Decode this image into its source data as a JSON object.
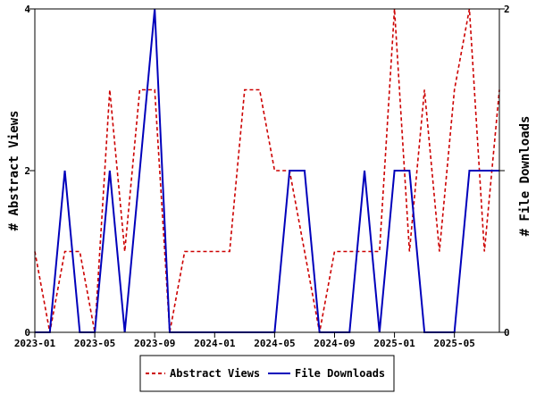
{
  "chart_data": {
    "type": "line",
    "x": [
      "2023-01",
      "2023-02",
      "2023-03",
      "2023-04",
      "2023-05",
      "2023-06",
      "2023-07",
      "2023-08",
      "2023-09",
      "2023-10",
      "2023-11",
      "2023-12",
      "2024-01",
      "2024-02",
      "2024-03",
      "2024-04",
      "2024-05",
      "2024-06",
      "2024-07",
      "2024-08",
      "2024-09",
      "2024-10",
      "2024-11",
      "2024-12",
      "2025-01",
      "2025-02",
      "2025-03",
      "2025-04",
      "2025-05",
      "2025-06",
      "2025-07",
      "2025-08"
    ],
    "xticks": [
      "2023-01",
      "2023-05",
      "2023-09",
      "2024-01",
      "2024-05",
      "2024-09",
      "2025-01",
      "2025-05"
    ],
    "series": [
      {
        "name": "Abstract Views",
        "axis": "left",
        "color": "#cc0000",
        "dash": "dashed",
        "values": [
          1,
          0,
          1,
          1,
          0,
          3,
          1,
          3,
          3,
          0,
          1,
          1,
          1,
          1,
          3,
          3,
          2,
          2,
          1,
          0,
          1,
          1,
          1,
          1,
          4,
          1,
          3,
          1,
          3,
          4,
          1,
          3
        ]
      },
      {
        "name": "File Downloads",
        "axis": "right",
        "color": "#0000bb",
        "dash": "solid",
        "values": [
          0,
          0,
          1,
          0,
          0,
          1,
          0,
          1,
          2,
          0,
          0,
          0,
          0,
          0,
          0,
          0,
          0,
          1,
          1,
          0,
          0,
          0,
          1,
          0,
          1,
          1,
          0,
          0,
          0,
          1,
          1,
          1
        ]
      }
    ],
    "y_left": {
      "label": "# Abstract Views",
      "range": [
        0,
        4
      ],
      "ticks": [
        "0",
        "2",
        "4"
      ]
    },
    "y_right": {
      "label": "# File Downloads",
      "range": [
        0,
        2
      ],
      "ticks": [
        "0",
        "1",
        "2"
      ],
      "tick_labels_shown": [
        "0",
        "2"
      ]
    },
    "grid": false,
    "legend_position": "bottom-center"
  }
}
